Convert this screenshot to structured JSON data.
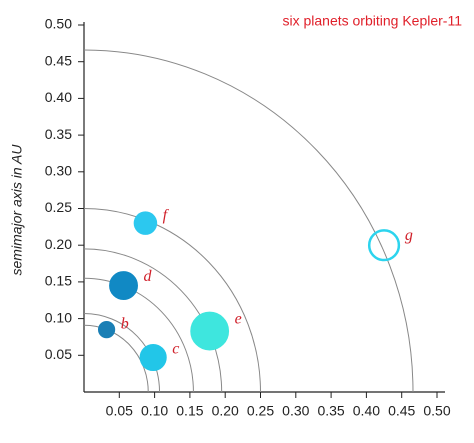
{
  "chart_data": {
    "type": "scatter",
    "title": "six planets orbiting Kepler-11",
    "ylabel": "semimajor axis in AU",
    "labels": [
      "b",
      "c",
      "d",
      "e",
      "f",
      "g"
    ],
    "x": [
      0.032,
      0.098,
      0.056,
      0.178,
      0.087,
      0.425
    ],
    "y": [
      0.085,
      0.047,
      0.145,
      0.083,
      0.23,
      0.2
    ],
    "sizes": [
      1.8,
      2.9,
      3.1,
      4.2,
      2.5,
      3.3
    ],
    "colors": [
      "#1a7fb5",
      "#22c6e8",
      "#1189c4",
      "#3ee6de",
      "#2cc8ef",
      "#2cd4ee"
    ],
    "filled": [
      true,
      true,
      true,
      true,
      true,
      false
    ],
    "orbits": [
      0.091,
      0.107,
      0.155,
      0.195,
      0.25,
      0.466
    ],
    "xlim": [
      0,
      0.5
    ],
    "ylim": [
      0,
      0.5
    ],
    "xticks": [
      0.05,
      {
        "value": 0.1,
        "label": "0.10"
      },
      0.15,
      {
        "value": 0.2,
        "label": "0.20"
      },
      0.25,
      {
        "value": 0.3,
        "label": "0.30"
      },
      0.35,
      {
        "value": 0.4,
        "label": "0.40"
      },
      0.45,
      {
        "value": 0.5,
        "label": "0.50"
      }
    ],
    "yticks": [
      0.05,
      {
        "value": 0.1,
        "label": "0.10"
      },
      0.15,
      {
        "value": 0.2,
        "label": "0.20"
      },
      0.25,
      {
        "value": 0.3,
        "label": "0.30"
      },
      0.35,
      {
        "value": 0.4,
        "label": "0.40"
      },
      0.45,
      {
        "value": 0.5,
        "label": "0.50"
      }
    ]
  }
}
